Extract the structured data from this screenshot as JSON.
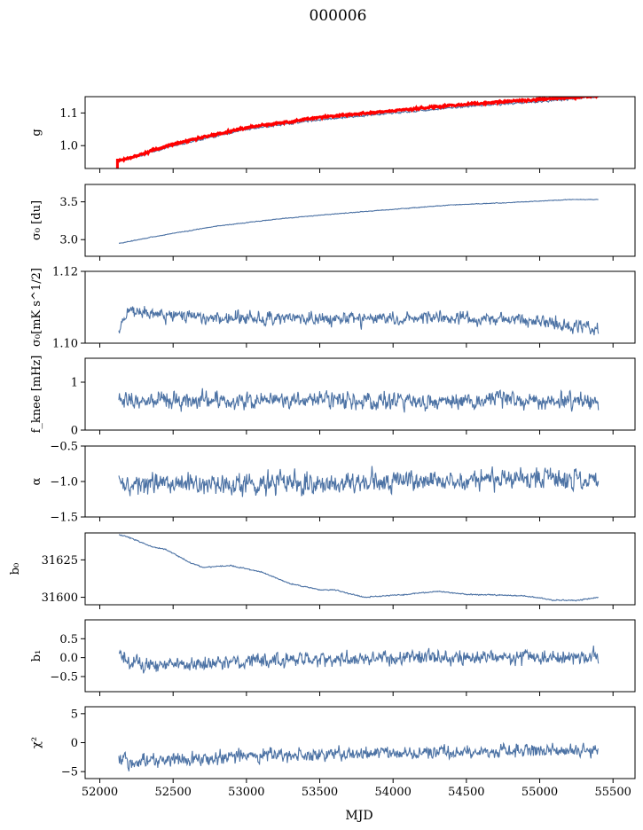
{
  "suptitle": "000006",
  "xlabel": "MJD",
  "colors": {
    "line": "#4c72a4",
    "secondary": "#ff0000"
  },
  "xlim": [
    51900,
    55650
  ],
  "xticks": [
    52000,
    52500,
    53000,
    53500,
    54000,
    54500,
    55000,
    55500
  ],
  "chart_data": [
    {
      "type": "line",
      "ylabel": "g",
      "ylim": [
        0.93,
        1.15
      ],
      "yticks": [
        {
          "value": 1.0,
          "label": "1.0"
        },
        {
          "value": 1.1,
          "label": "1.1"
        }
      ],
      "series": [
        {
          "style": "primary",
          "noise": 0.002,
          "x": [
            52130,
            52200,
            52500,
            53000,
            53500,
            54000,
            54500,
            55000,
            55400
          ],
          "y": [
            0.955,
            0.96,
            1.0,
            1.05,
            1.08,
            1.1,
            1.12,
            1.135,
            1.15
          ]
        },
        {
          "style": "secondary",
          "noise": 0.002,
          "x": [
            52130,
            52200,
            52500,
            53000,
            53500,
            54000,
            54500,
            55000,
            55400
          ],
          "y": [
            0.955,
            0.962,
            1.005,
            1.055,
            1.087,
            1.107,
            1.127,
            1.142,
            1.152
          ]
        },
        {
          "style": "secondary",
          "noise": 0,
          "x": [
            52120,
            52120
          ],
          "y": [
            0.93,
            0.96
          ]
        }
      ]
    },
    {
      "type": "line",
      "ylabel": "σ₀ [du]",
      "ylim": [
        2.78,
        3.73
      ],
      "yticks": [
        {
          "value": 3.0,
          "label": "3.0"
        },
        {
          "value": 3.5,
          "label": "3.5"
        }
      ],
      "series": [
        {
          "style": "primary",
          "noise": 0.003,
          "x": [
            52130,
            52400,
            52800,
            53200,
            53600,
            54000,
            54400,
            54800,
            55200,
            55400
          ],
          "y": [
            2.95,
            3.05,
            3.18,
            3.27,
            3.34,
            3.4,
            3.46,
            3.49,
            3.53,
            3.53
          ]
        }
      ]
    },
    {
      "type": "line",
      "ylabel": "σ₀[mK s^1/2]",
      "ylim": [
        1.1,
        1.12
      ],
      "yticks": [
        {
          "value": 1.1,
          "label": "1.10"
        },
        {
          "value": 1.12,
          "label": "1.12"
        }
      ],
      "series": [
        {
          "style": "primary",
          "noise": 0.0012,
          "x": [
            52130,
            52200,
            52400,
            53000,
            53500,
            54000,
            54500,
            55000,
            55400
          ],
          "y": [
            1.104,
            1.109,
            1.108,
            1.107,
            1.107,
            1.107,
            1.107,
            1.106,
            1.104
          ]
        }
      ]
    },
    {
      "type": "line",
      "ylabel": "f_knee [mHz]",
      "ylim": [
        0,
        1.5
      ],
      "yticks": [
        {
          "value": 0,
          "label": "0"
        },
        {
          "value": 1,
          "label": "1"
        }
      ],
      "series": [
        {
          "style": "primary",
          "noise": 0.12,
          "x": [
            52130,
            55400
          ],
          "y": [
            0.62,
            0.62
          ]
        }
      ]
    },
    {
      "type": "line",
      "ylabel": "α",
      "ylim": [
        -1.5,
        -0.5
      ],
      "yticks": [
        {
          "value": -1.5,
          "label": "−1.5"
        },
        {
          "value": -1.0,
          "label": "−1.0"
        },
        {
          "value": -0.5,
          "label": "−0.5"
        }
      ],
      "series": [
        {
          "style": "primary",
          "noise": 0.1,
          "x": [
            52130,
            53500,
            54500,
            55400
          ],
          "y": [
            -1.05,
            -1.02,
            -0.98,
            -0.97
          ]
        }
      ]
    },
    {
      "type": "line",
      "ylabel": "b₀",
      "ylim": [
        31595,
        31643
      ],
      "yticks": [
        {
          "value": 31600,
          "label": "31600"
        },
        {
          "value": 31625,
          "label": "31625"
        }
      ],
      "series": [
        {
          "style": "primary",
          "noise": 0.25,
          "x": [
            52130,
            52200,
            52350,
            52450,
            52600,
            52700,
            52900,
            53100,
            53300,
            53500,
            53600,
            53800,
            54100,
            54300,
            54500,
            54900,
            55100,
            55250,
            55400
          ],
          "y": [
            31642,
            31640,
            31634,
            31632,
            31624,
            31620,
            31621,
            31617,
            31609,
            31605,
            31605,
            31600,
            31602,
            31604,
            31602,
            31601,
            31598,
            31598,
            31600
          ]
        }
      ]
    },
    {
      "type": "line",
      "ylabel": "b₁",
      "ylim": [
        -0.9,
        1.0
      ],
      "yticks": [
        {
          "value": -0.5,
          "label": "−0.5"
        },
        {
          "value": 0.0,
          "label": "0.0"
        },
        {
          "value": 0.5,
          "label": "0.5"
        }
      ],
      "series": [
        {
          "style": "primary",
          "noise": 0.13,
          "x": [
            52130,
            52200,
            52300,
            53000,
            54000,
            55000,
            55400
          ],
          "y": [
            0.2,
            -0.15,
            -0.2,
            -0.1,
            0.0,
            0.0,
            0.05
          ]
        }
      ]
    },
    {
      "type": "line",
      "ylabel": "χ²",
      "ylim": [
        -6.2,
        6.2
      ],
      "yticks": [
        {
          "value": -5,
          "label": "−5"
        },
        {
          "value": 0,
          "label": "0"
        },
        {
          "value": 5,
          "label": "5"
        }
      ],
      "series": [
        {
          "style": "primary",
          "noise": 0.8,
          "x": [
            52130,
            52300,
            53000,
            53500,
            54000,
            54500,
            55000,
            55400
          ],
          "y": [
            -3.0,
            -3.2,
            -2.3,
            -2.0,
            -1.8,
            -1.5,
            -1.5,
            -1.8
          ]
        }
      ]
    }
  ]
}
